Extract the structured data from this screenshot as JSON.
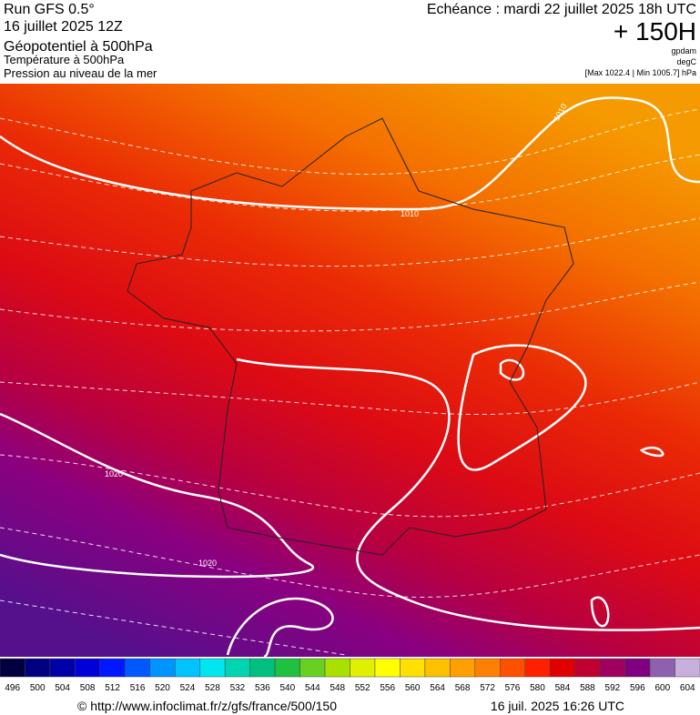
{
  "header": {
    "run": "Run GFS 0.5°",
    "date": "16 juillet 2025 12Z",
    "title": "Géopotentiel à 500hPa",
    "subtitle1": "Température à 500hPa",
    "subtitle2": "Pression au niveau de la mer",
    "forecast": "Echéance : mardi 22 juillet 2025 18h UTC",
    "lead": "+ 150H",
    "unit1": "gpdam",
    "unit2": "degC",
    "range": "[Max 1022.4 | Min 1005.7] hPa"
  },
  "isobar_labels": [
    "1010",
    "1010",
    "1020",
    "1020"
  ],
  "colorbar": {
    "labels": [
      496,
      500,
      504,
      508,
      512,
      516,
      520,
      524,
      528,
      532,
      536,
      540,
      544,
      548,
      552,
      556,
      560,
      564,
      568,
      572,
      576,
      580,
      584,
      588,
      592,
      596,
      600,
      604
    ]
  },
  "footer": {
    "source": "© http://www.infoclimat.fr/z/gfs/france/500/150",
    "stamp": "16 juil. 2025 16:26 UTC"
  }
}
